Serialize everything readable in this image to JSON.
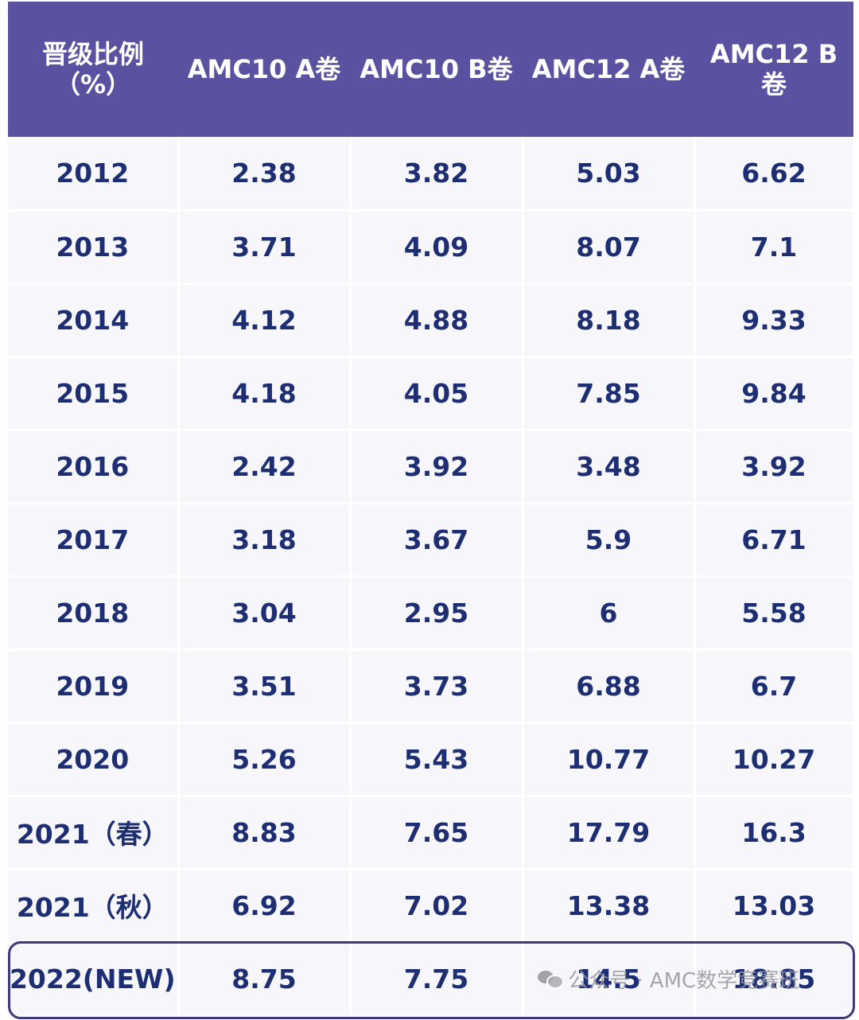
{
  "chart_data": {
    "type": "table",
    "columns": [
      "晋级比例\n（%）",
      "AMC10 A卷",
      "AMC10 B卷",
      "AMC12 A卷",
      "AMC12 B\n卷"
    ],
    "rows": [
      [
        "2012",
        "2.38",
        "3.82",
        "5.03",
        "6.62"
      ],
      [
        "2013",
        "3.71",
        "4.09",
        "8.07",
        "7.1"
      ],
      [
        "2014",
        "4.12",
        "4.88",
        "8.18",
        "9.33"
      ],
      [
        "2015",
        "4.18",
        "4.05",
        "7.85",
        "9.84"
      ],
      [
        "2016",
        "2.42",
        "3.92",
        "3.48",
        "3.92"
      ],
      [
        "2017",
        "3.18",
        "3.67",
        "5.9",
        "6.71"
      ],
      [
        "2018",
        "3.04",
        "2.95",
        "6",
        "5.58"
      ],
      [
        "2019",
        "3.51",
        "3.73",
        "6.88",
        "6.7"
      ],
      [
        "2020",
        "5.26",
        "5.43",
        "10.77",
        "10.27"
      ],
      [
        "2021（春）",
        "8.83",
        "7.65",
        "17.79",
        "16.3"
      ],
      [
        "2021（秋）",
        "6.92",
        "7.02",
        "13.38",
        "13.03"
      ],
      [
        "2022(NEW)",
        "8.75",
        "7.75",
        "14.5",
        "18.85"
      ]
    ],
    "highlight_row": 11,
    "colors": {
      "header_bg": "#5a52a1",
      "header_text": "#ffffff",
      "cell_text": "#1e2e72",
      "cell_bg": "#f7f7fb",
      "highlight_border": "#3e3a7a"
    }
  },
  "watermark": {
    "icon": "wechat-icon",
    "text": "公众号 · AMC数学竞赛班"
  }
}
